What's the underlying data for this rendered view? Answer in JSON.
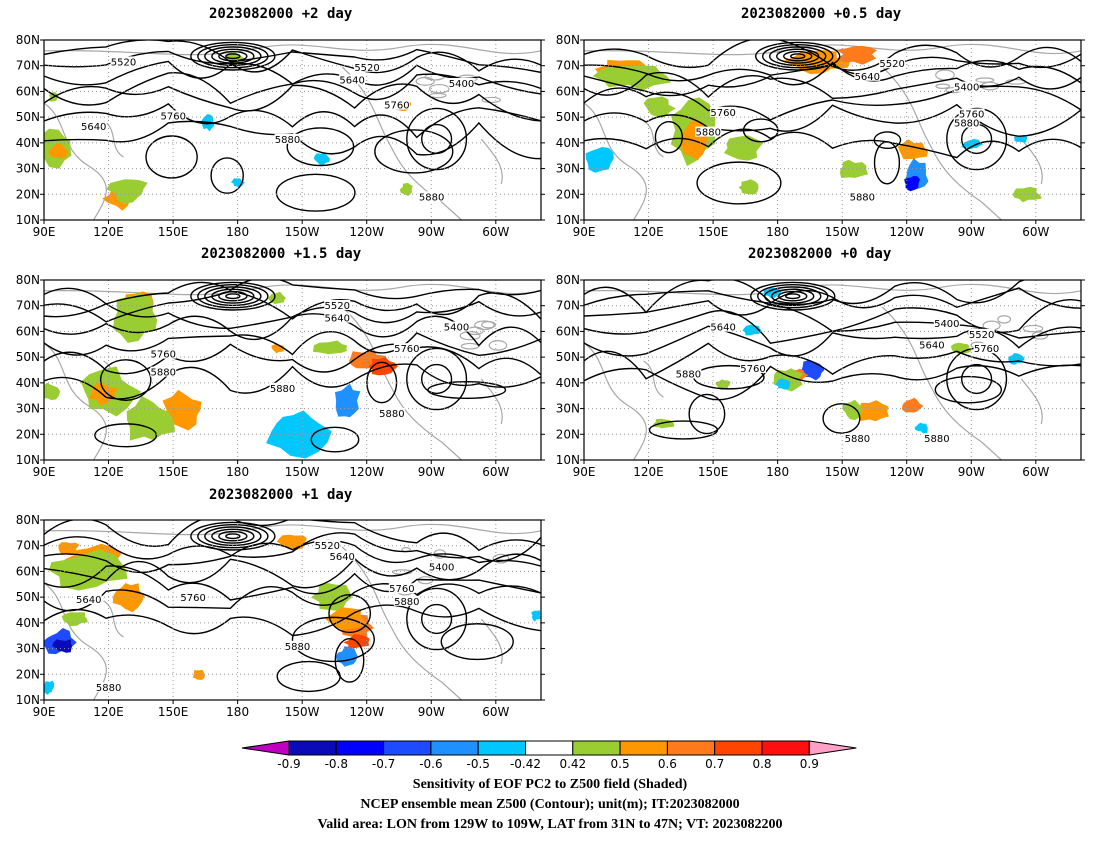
{
  "map_data": {
    "lat_ticks": [
      "80N",
      "70N",
      "60N",
      "50N",
      "40N",
      "30N",
      "20N",
      "10N"
    ],
    "lon_ticks": [
      "90E",
      "120E",
      "150E",
      "180",
      "150W",
      "120W",
      "90W",
      "60W"
    ],
    "panels": [
      {
        "id": "p2",
        "title": "2023082000  +2 day",
        "contour_labels": [
          "5520",
          "5520",
          "5640",
          "5400",
          "5760",
          "5760",
          "5640",
          "5880",
          "5880"
        ]
      },
      {
        "id": "p05",
        "title": "2023082000  +0.5 day",
        "contour_labels": [
          "5520",
          "5640",
          "5400",
          "5760",
          "5760",
          "5880",
          "5880",
          "5880"
        ]
      },
      {
        "id": "p15",
        "title": "2023082000  +1.5 day",
        "contour_labels": [
          "5520",
          "5640",
          "5400",
          "5760",
          "5760",
          "5880",
          "5880",
          "5880"
        ]
      },
      {
        "id": "p0",
        "title": "2023082000  +0 day",
        "contour_labels": [
          "5640",
          "5400",
          "5520",
          "5640",
          "5760",
          "5760",
          "5880",
          "5880",
          "5880"
        ]
      },
      {
        "id": "p1",
        "title": "2023082000  +1 day",
        "contour_labels": [
          "5520",
          "5640",
          "5400",
          "5760",
          "5640",
          "5760",
          "5880",
          "5880",
          "5880"
        ]
      }
    ]
  },
  "colorbar": {
    "tick_labels": [
      "-0.9",
      "-0.8",
      "-0.7",
      "-0.6",
      "-0.5",
      "-0.42",
      "0.42",
      "0.5",
      "0.6",
      "0.7",
      "0.8",
      "0.9"
    ],
    "colors": {
      "below_min": "#c000c0",
      "neg_09": "#0a0ab8",
      "neg_08": "#0000ff",
      "neg_07": "#1e4bff",
      "neg_06": "#1e90ff",
      "neg_05": "#00c8ff",
      "white": "#ffffff",
      "pos_042": "#9acd32",
      "pos_05": "#ff9800",
      "pos_06": "#ff7a1a",
      "pos_07": "#ff4500",
      "pos_08": "#ff1010",
      "above_max": "#ffa0c8"
    }
  },
  "caption": {
    "line1": "Sensitivity of EOF PC2 to Z500 field (Shaded)",
    "line2": "NCEP ensemble mean Z500 (Contour); unit(m); IT:2023082000",
    "line3": "Valid area: LON from 129W to 109W, LAT from 31N to 47N; VT: 2023082200"
  }
}
